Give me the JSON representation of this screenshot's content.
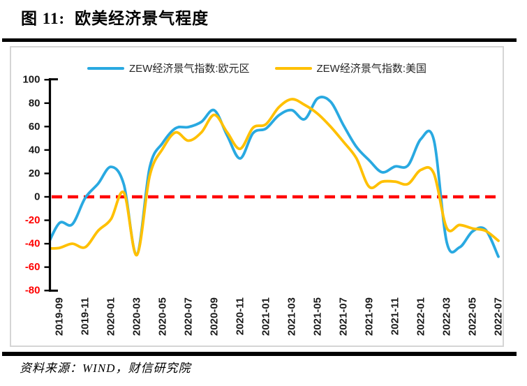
{
  "page": {
    "figure_label": "图 11:",
    "title": "欧美经济景气程度",
    "source": "资料来源：WIND，财信研究院"
  },
  "legend": [
    {
      "label": "ZEW经济景气指数:欧元区",
      "color": "#29a9e1"
    },
    {
      "label": "ZEW经济景气指数:美国",
      "color": "#ffc000"
    }
  ],
  "chart_data": {
    "type": "line",
    "smooth": true,
    "grid": false,
    "legend_position": "top",
    "title": "欧美经济景气程度",
    "x": [
      "2019-08",
      "2019-09",
      "2019-10",
      "2019-11",
      "2019-12",
      "2020-01",
      "2020-02",
      "2020-03",
      "2020-04",
      "2020-05",
      "2020-06",
      "2020-07",
      "2020-08",
      "2020-09",
      "2020-10",
      "2020-11",
      "2020-12",
      "2021-01",
      "2021-02",
      "2021-03",
      "2021-04",
      "2021-05",
      "2021-06",
      "2021-07",
      "2021-08",
      "2021-09",
      "2021-10",
      "2021-11",
      "2021-12",
      "2022-01",
      "2022-02",
      "2022-03",
      "2022-04",
      "2022-05",
      "2022-06",
      "2022-07"
    ],
    "series": [
      {
        "name": "ZEW经济景气指数:欧元区",
        "color": "#29a9e1",
        "values": [
          -43.6,
          -22.4,
          -23.5,
          -1.0,
          11.2,
          25.6,
          10.4,
          -49.5,
          25.2,
          46.0,
          58.6,
          59.6,
          64.0,
          73.9,
          52.3,
          32.8,
          54.4,
          58.3,
          69.6,
          74.0,
          66.3,
          84.0,
          81.3,
          61.2,
          42.7,
          31.1,
          21.0,
          25.9,
          26.8,
          49.4,
          48.6,
          -38.7,
          -43.0,
          -29.5,
          -28.0,
          -51.1
        ]
      },
      {
        "name": "ZEW经济景气指数:美国",
        "color": "#ffc000",
        "values": [
          -44.0,
          -43.6,
          -40.0,
          -43.0,
          -29.0,
          -19.0,
          3.5,
          -49.7,
          18.0,
          41.0,
          55.0,
          48.0,
          55.0,
          70.0,
          55.0,
          41.0,
          59.0,
          62.0,
          76.5,
          83.4,
          78.5,
          71.0,
          60.0,
          47.0,
          33.0,
          8.5,
          13.0,
          13.0,
          11.0,
          23.0,
          20.0,
          -26.5,
          -24.0,
          -27.0,
          -29.0,
          -37.5
        ]
      }
    ],
    "ylim": [
      -80,
      100
    ],
    "yticks": [
      100,
      80,
      60,
      40,
      20,
      0,
      -20,
      -40,
      -60,
      -80
    ],
    "ytick_negative_color": "#ff0000",
    "xtick_labels": [
      "2019-09",
      "2019-11",
      "2020-01",
      "2020-03",
      "2020-05",
      "2020-07",
      "2020-09",
      "2020-11",
      "2021-01",
      "2021-03",
      "2021-05",
      "2021-07",
      "2021-09",
      "2021-11",
      "2022-01",
      "2022-03",
      "2022-05",
      "2022-07"
    ],
    "zero_line": {
      "value": 0,
      "color": "#ff0000",
      "style": "dashed"
    }
  }
}
